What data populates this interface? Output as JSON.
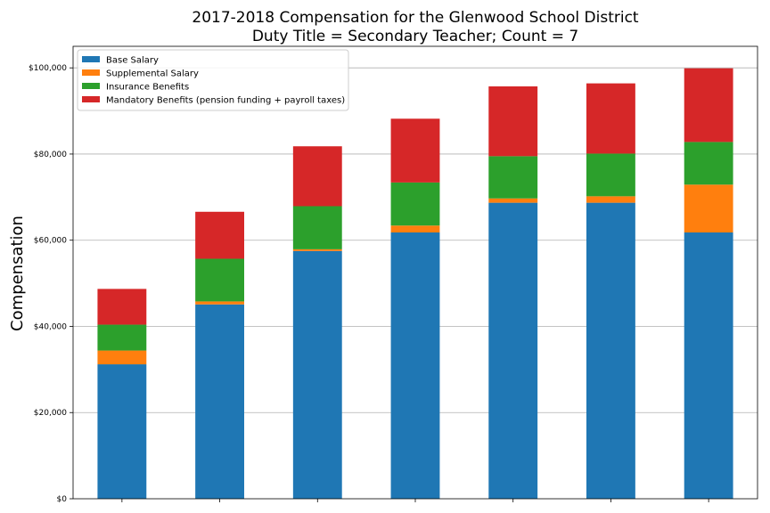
{
  "chart_data": {
    "type": "bar",
    "stacked": true,
    "title": "2017-2018 Compensation for the Glenwood School District",
    "subtitle": "Duty Title = Secondary Teacher; Count = 7",
    "xlabel": "",
    "ylabel": "Compensation",
    "ylim": [
      0,
      105000
    ],
    "yticks": [
      0,
      20000,
      40000,
      60000,
      80000,
      100000
    ],
    "ytick_labels": [
      "$0",
      "$20,000",
      "$40,000",
      "$60,000",
      "$80,000",
      "$100,000"
    ],
    "categories": [
      "",
      "",
      "",
      "",
      "",
      "",
      ""
    ],
    "grid": "horizontal",
    "legend_position": "top-left",
    "series": [
      {
        "name": "Base Salary",
        "color": "#1f77b4",
        "values": [
          31200,
          45100,
          57500,
          61800,
          68700,
          68700,
          61800
        ]
      },
      {
        "name": "Supplemental Salary",
        "color": "#ff7f0e",
        "values": [
          3200,
          700,
          400,
          1600,
          1000,
          1500,
          11100
        ]
      },
      {
        "name": "Insurance Benefits",
        "color": "#2ca02c",
        "values": [
          6000,
          9900,
          10000,
          10000,
          9800,
          9900,
          9900
        ]
      },
      {
        "name": "Mandatory Benefits (pension funding + payroll taxes)",
        "color": "#d62728",
        "values": [
          8300,
          10900,
          13900,
          14800,
          16200,
          16300,
          17100
        ]
      }
    ]
  }
}
